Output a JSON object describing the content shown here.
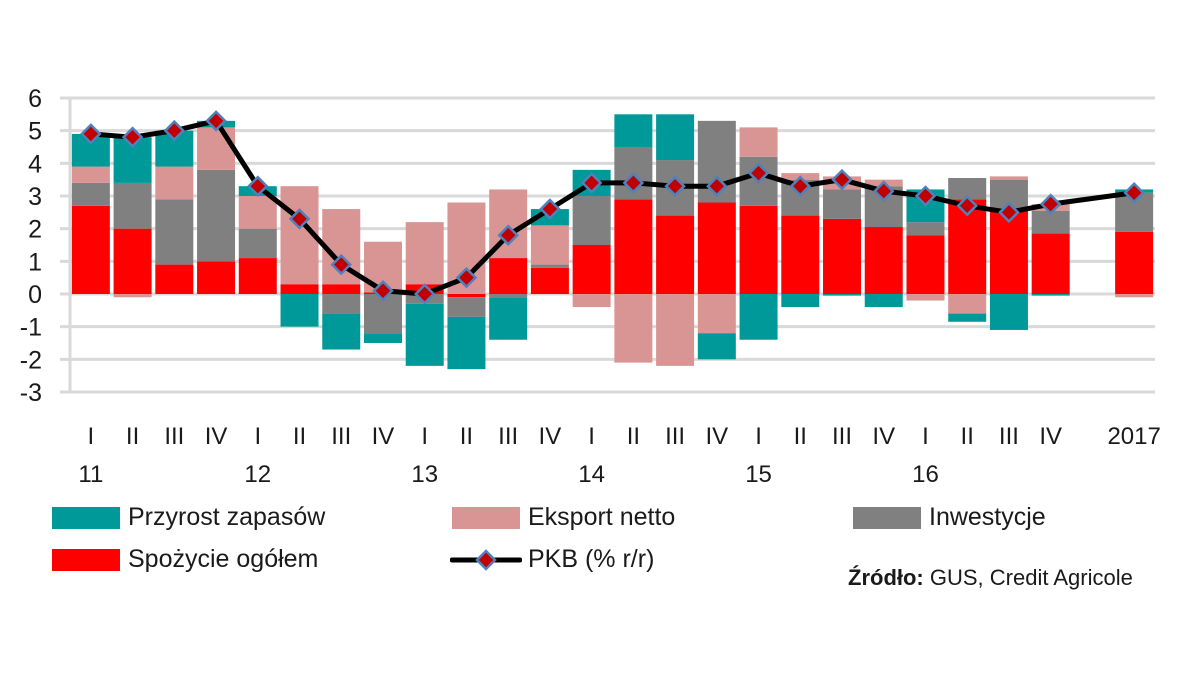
{
  "chart_data": {
    "type": "bar",
    "subtype": "stacked-bar-with-line",
    "title": "",
    "xlabel": "",
    "ylabel": "",
    "ylim": [
      -3,
      6
    ],
    "yticks": [
      6,
      5,
      4,
      3,
      2,
      1,
      0,
      -1,
      -2,
      -3
    ],
    "grid": true,
    "categories": [
      "I",
      "II",
      "III",
      "IV",
      "I",
      "II",
      "III",
      "IV",
      "I",
      "II",
      "III",
      "IV",
      "I",
      "II",
      "III",
      "IV",
      "I",
      "II",
      "III",
      "IV",
      "I",
      "II",
      "III",
      "IV",
      "",
      "2017"
    ],
    "year_labels": [
      {
        "label": "11",
        "index": 0
      },
      {
        "label": "12",
        "index": 4
      },
      {
        "label": "13",
        "index": 8
      },
      {
        "label": "14",
        "index": 12
      },
      {
        "label": "15",
        "index": 16
      },
      {
        "label": "16",
        "index": 20
      }
    ],
    "series": [
      {
        "name": "Spożycie ogółem",
        "key": "consumption",
        "kind": "bar",
        "color": "#FF0000",
        "values": [
          2.7,
          2.0,
          0.9,
          1.0,
          1.1,
          0.3,
          0.3,
          0.05,
          0.3,
          -0.1,
          1.1,
          0.8,
          1.5,
          2.9,
          2.4,
          2.8,
          2.7,
          2.4,
          2.3,
          2.05,
          1.8,
          2.9,
          2.55,
          1.85,
          null,
          1.9
        ]
      },
      {
        "name": "Inwestycje",
        "key": "investment",
        "kind": "bar",
        "color": "#808080",
        "values": [
          0.7,
          1.4,
          2.0,
          2.8,
          0.9,
          0.0,
          -0.6,
          -1.2,
          -0.3,
          -0.6,
          -0.1,
          0.1,
          1.5,
          1.6,
          1.7,
          2.5,
          1.5,
          1.1,
          0.9,
          1.25,
          0.4,
          0.65,
          0.95,
          0.7,
          null,
          1.2
        ]
      },
      {
        "name": "Eksport netto",
        "key": "net_exports",
        "kind": "bar",
        "color": "#D99594",
        "values": [
          0.5,
          -0.1,
          1.0,
          1.3,
          1.0,
          3.0,
          2.3,
          1.55,
          1.9,
          2.8,
          2.1,
          1.2,
          -0.4,
          -2.1,
          -2.2,
          -1.2,
          0.9,
          0.2,
          0.4,
          0.2,
          -0.2,
          -0.6,
          0.1,
          0.2,
          null,
          -0.1
        ]
      },
      {
        "name": "Przyrost zapasów",
        "key": "inventories",
        "kind": "bar",
        "color": "#009999",
        "values": [
          1.0,
          1.4,
          1.1,
          0.2,
          0.3,
          -1.0,
          -1.1,
          -0.3,
          -1.9,
          -1.6,
          -1.3,
          0.5,
          0.8,
          1.0,
          1.4,
          -0.8,
          -1.4,
          -0.4,
          -0.05,
          -0.4,
          1.0,
          -0.25,
          -1.1,
          -0.05,
          null,
          0.1
        ]
      },
      {
        "name": "PKB (% r/r)",
        "key": "gdp",
        "kind": "line",
        "color": "#000000",
        "marker_fill": "#C00000",
        "marker_edge": "#4F81BD",
        "values": [
          4.9,
          4.8,
          5.0,
          5.3,
          3.3,
          2.3,
          0.9,
          0.1,
          0.0,
          0.5,
          1.8,
          2.6,
          3.4,
          3.4,
          3.3,
          3.3,
          3.7,
          3.3,
          3.5,
          3.15,
          3.0,
          2.7,
          2.5,
          2.75,
          null,
          3.1
        ]
      }
    ],
    "legend": [
      {
        "label": "Przyrost zapasów",
        "color": "#009999",
        "kind": "bar"
      },
      {
        "label": "Eksport netto",
        "color": "#D99594",
        "kind": "bar"
      },
      {
        "label": "Inwestycje",
        "color": "#808080",
        "kind": "bar"
      },
      {
        "label": "Spożycie ogółem",
        "color": "#FF0000",
        "kind": "bar"
      },
      {
        "label": "PKB (% r/r)",
        "color": "#000000",
        "kind": "line"
      }
    ],
    "legend_position": "bottom",
    "source_label": "Źródło:",
    "source_text": " GUS, Credit Agricole"
  }
}
